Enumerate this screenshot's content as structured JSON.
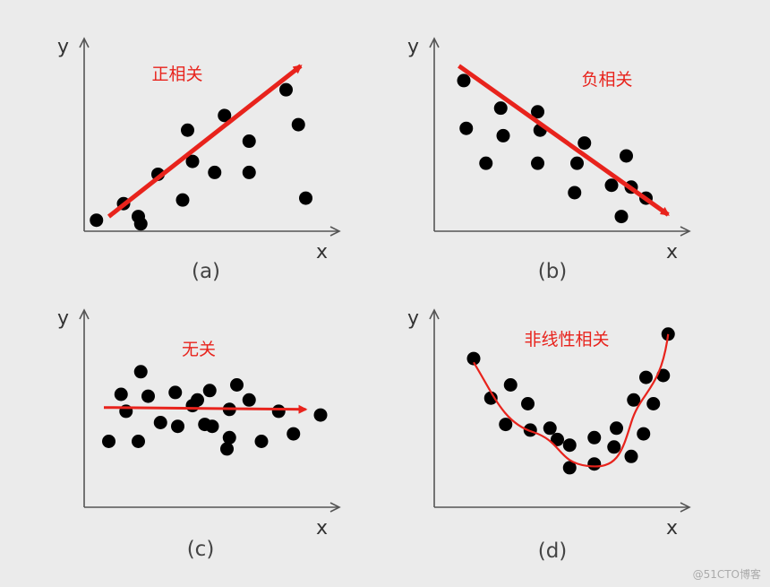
{
  "watermark": "@51CTO博客",
  "chart_data": [
    {
      "type": "scatter",
      "caption": "(a)",
      "annotation": "正相关",
      "xlabel": "x",
      "ylabel": "y",
      "trend": "linear-arrow",
      "trend_color": "#e8231c",
      "point_color": "#000000",
      "points": [
        [
          0.05,
          0.06
        ],
        [
          0.16,
          0.15
        ],
        [
          0.22,
          0.08
        ],
        [
          0.23,
          0.04
        ],
        [
          0.3,
          0.31
        ],
        [
          0.4,
          0.17
        ],
        [
          0.42,
          0.55
        ],
        [
          0.44,
          0.38
        ],
        [
          0.53,
          0.32
        ],
        [
          0.57,
          0.63
        ],
        [
          0.67,
          0.32
        ],
        [
          0.67,
          0.49
        ],
        [
          0.82,
          0.77
        ],
        [
          0.87,
          0.58
        ],
        [
          0.9,
          0.18
        ]
      ]
    },
    {
      "type": "scatter",
      "caption": "(b)",
      "annotation": "负相关",
      "xlabel": "x",
      "ylabel": "y",
      "trend": "linear-arrow",
      "trend_color": "#e8231c",
      "point_color": "#000000",
      "points": [
        [
          0.12,
          0.82
        ],
        [
          0.13,
          0.56
        ],
        [
          0.21,
          0.37
        ],
        [
          0.27,
          0.67
        ],
        [
          0.28,
          0.52
        ],
        [
          0.42,
          0.65
        ],
        [
          0.43,
          0.55
        ],
        [
          0.42,
          0.37
        ],
        [
          0.58,
          0.37
        ],
        [
          0.57,
          0.21
        ],
        [
          0.61,
          0.48
        ],
        [
          0.72,
          0.25
        ],
        [
          0.76,
          0.08
        ],
        [
          0.78,
          0.41
        ],
        [
          0.8,
          0.24
        ],
        [
          0.86,
          0.18
        ]
      ]
    },
    {
      "type": "scatter",
      "caption": "(c)",
      "annotation": "无关",
      "xlabel": "x",
      "ylabel": "y",
      "trend": "flat-arrow",
      "trend_color": "#e8231c",
      "point_color": "#000000",
      "points": [
        [
          0.1,
          0.35
        ],
        [
          0.15,
          0.6
        ],
        [
          0.17,
          0.51
        ],
        [
          0.22,
          0.35
        ],
        [
          0.23,
          0.72
        ],
        [
          0.26,
          0.59
        ],
        [
          0.31,
          0.45
        ],
        [
          0.37,
          0.61
        ],
        [
          0.38,
          0.43
        ],
        [
          0.44,
          0.54
        ],
        [
          0.46,
          0.57
        ],
        [
          0.49,
          0.44
        ],
        [
          0.51,
          0.62
        ],
        [
          0.52,
          0.43
        ],
        [
          0.58,
          0.31
        ],
        [
          0.59,
          0.37
        ],
        [
          0.59,
          0.52
        ],
        [
          0.62,
          0.65
        ],
        [
          0.67,
          0.57
        ],
        [
          0.72,
          0.35
        ],
        [
          0.79,
          0.51
        ],
        [
          0.85,
          0.39
        ],
        [
          0.96,
          0.49
        ]
      ]
    },
    {
      "type": "scatter",
      "caption": "(d)",
      "annotation": "非线性相关",
      "xlabel": "x",
      "ylabel": "y",
      "trend": "u-curve",
      "trend_color": "#e8231c",
      "point_color": "#000000",
      "points": [
        [
          0.16,
          0.79
        ],
        [
          0.23,
          0.58
        ],
        [
          0.29,
          0.44
        ],
        [
          0.31,
          0.65
        ],
        [
          0.38,
          0.55
        ],
        [
          0.39,
          0.41
        ],
        [
          0.47,
          0.42
        ],
        [
          0.5,
          0.36
        ],
        [
          0.55,
          0.33
        ],
        [
          0.55,
          0.21
        ],
        [
          0.65,
          0.37
        ],
        [
          0.65,
          0.23
        ],
        [
          0.74,
          0.42
        ],
        [
          0.73,
          0.32
        ],
        [
          0.8,
          0.27
        ],
        [
          0.81,
          0.57
        ],
        [
          0.85,
          0.39
        ],
        [
          0.86,
          0.69
        ],
        [
          0.89,
          0.55
        ],
        [
          0.93,
          0.7
        ],
        [
          0.95,
          0.92
        ]
      ]
    }
  ]
}
